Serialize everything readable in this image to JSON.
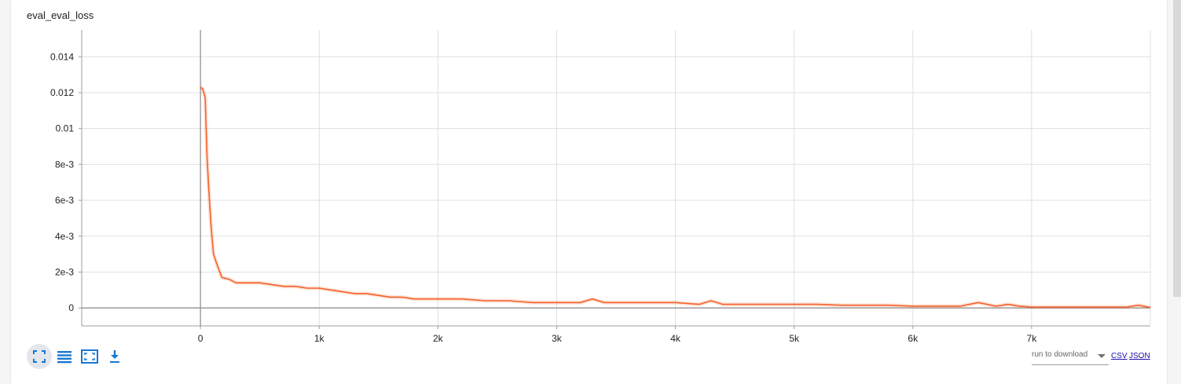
{
  "panel": {
    "title": "eval_eval_loss"
  },
  "toolbar": {
    "buttons": [
      {
        "name": "fit-domain-button",
        "icon": "fullscreen-icon"
      },
      {
        "name": "toggle-log-scale-button",
        "icon": "list-icon"
      },
      {
        "name": "fit-data-button",
        "icon": "fit-screen-icon"
      },
      {
        "name": "download-chart-button",
        "icon": "download-icon"
      }
    ],
    "accent_color": "#1976d2"
  },
  "download": {
    "run_placeholder": "run to download",
    "csv_label": "CSV",
    "json_label": "JSON"
  },
  "chart_data": {
    "type": "line",
    "title": "eval_eval_loss",
    "xlabel": "",
    "ylabel": "",
    "xlim": [
      -1000,
      8000
    ],
    "ylim": [
      -0.001,
      0.0155
    ],
    "x_ticks": [
      0,
      1000,
      2000,
      3000,
      4000,
      5000,
      6000,
      7000
    ],
    "x_tick_labels": [
      "0",
      "1k",
      "2k",
      "3k",
      "4k",
      "5k",
      "6k",
      "7k"
    ],
    "y_ticks": [
      0,
      0.002,
      0.004,
      0.006,
      0.008,
      0.01,
      0.012,
      0.014
    ],
    "y_tick_labels": [
      "0",
      "2e-3",
      "4e-3",
      "6e-3",
      "8e-3",
      "0.01",
      "0.012",
      "0.014"
    ],
    "grid": true,
    "series": [
      {
        "color": "#f4622a",
        "x": [
          0,
          20,
          40,
          55,
          70,
          90,
          110,
          140,
          180,
          240,
          300,
          400,
          500,
          600,
          700,
          800,
          900,
          1000,
          1100,
          1200,
          1300,
          1400,
          1500,
          1600,
          1700,
          1800,
          1900,
          2000,
          2200,
          2400,
          2600,
          2800,
          3000,
          3200,
          3300,
          3400,
          3600,
          3800,
          4000,
          4200,
          4300,
          4400,
          4600,
          4800,
          5000,
          5200,
          5400,
          5600,
          5800,
          6000,
          6200,
          6400,
          6550,
          6700,
          6800,
          6900,
          7000,
          7200,
          7400,
          7600,
          7800,
          7900,
          8000
        ],
        "values": [
          0.0123,
          0.0122,
          0.0117,
          0.0085,
          0.0066,
          0.0045,
          0.003,
          0.0024,
          0.0017,
          0.0016,
          0.0014,
          0.0014,
          0.0014,
          0.0013,
          0.0012,
          0.0012,
          0.0011,
          0.0011,
          0.001,
          0.0009,
          0.0008,
          0.0008,
          0.0007,
          0.0006,
          0.0006,
          0.0005,
          0.0005,
          0.0005,
          0.0005,
          0.0004,
          0.0004,
          0.0003,
          0.0003,
          0.0003,
          0.0005,
          0.0003,
          0.0003,
          0.0003,
          0.0003,
          0.0002,
          0.0004,
          0.0002,
          0.0002,
          0.0002,
          0.0002,
          0.0002,
          0.00015,
          0.00015,
          0.00015,
          0.0001,
          0.0001,
          0.0001,
          0.0003,
          0.0001,
          0.0002,
          0.0001,
          5e-05,
          5e-05,
          5e-05,
          5e-05,
          5e-05,
          0.00015,
          2e-05
        ]
      }
    ]
  }
}
